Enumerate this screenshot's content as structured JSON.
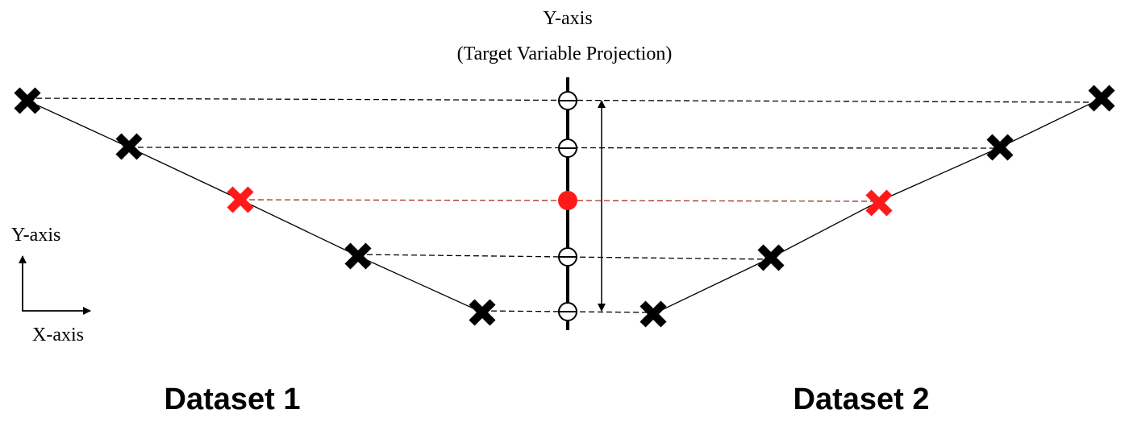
{
  "axis_title": {
    "line1": "Y-axis",
    "line2": "(Target Variable Projection)"
  },
  "legend": {
    "y_label": "Y-axis",
    "x_label": "X-axis"
  },
  "datasets": [
    {
      "label": "Dataset 1"
    },
    {
      "label": "Dataset 2"
    }
  ],
  "colors": {
    "point": "#000000",
    "highlight": "#ff1a1a",
    "highlight_line": "#a03020",
    "line": "#000000"
  },
  "icons": {
    "point_marker": "x-mark-icon",
    "projection_marker": "open-circle-icon",
    "highlight_projection": "filled-circle-icon"
  }
}
